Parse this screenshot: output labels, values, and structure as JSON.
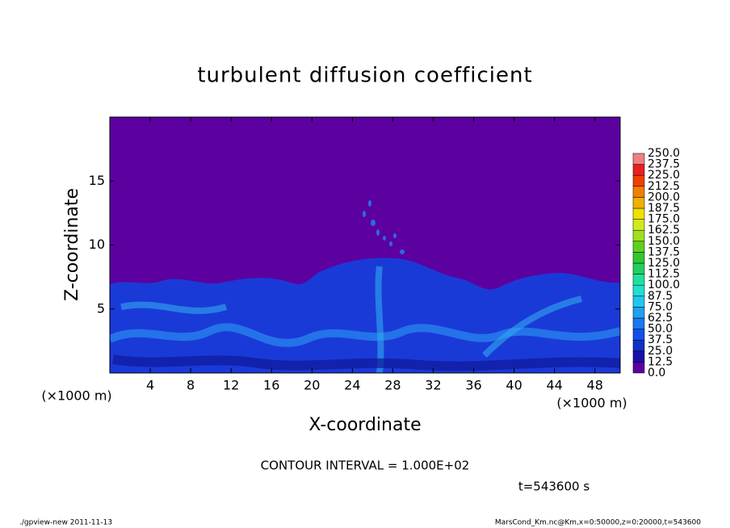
{
  "chart_data": {
    "type": "contour",
    "title": "turbulent diffusion coefficient",
    "x_label": "X-coordinate",
    "y_label": "Z-coordinate",
    "x_unit_left": "(×1000 m)",
    "x_unit_right": "(×1000 m)",
    "contour_note": "CONTOUR INTERVAL = 1.000E+02",
    "time_note": "t=543600 s",
    "footer_left": "./gpview-new  2011-11-13",
    "footer_right": "MarsCond_Km.nc@Km,x=0:50000,z=0:20000,t=543600",
    "xlim": [
      0,
      50.5
    ],
    "ylim": [
      0,
      20
    ],
    "xticks": [
      4,
      8,
      12,
      16,
      20,
      24,
      28,
      32,
      36,
      40,
      44,
      48
    ],
    "yticks": [
      5,
      10,
      15
    ],
    "colorbar": {
      "clim": [
        0,
        250
      ],
      "levels": [
        {
          "value": 0,
          "label": "0.0"
        },
        {
          "value": 12.5,
          "label": "12.5"
        },
        {
          "value": 25,
          "label": "25.0"
        },
        {
          "value": 37.5,
          "label": "37.5"
        },
        {
          "value": 50,
          "label": "50.0"
        },
        {
          "value": 62.5,
          "label": "62.5"
        },
        {
          "value": 75,
          "label": "75.0"
        },
        {
          "value": 87.5,
          "label": "87.5"
        },
        {
          "value": 100,
          "label": "100.0"
        },
        {
          "value": 112.5,
          "label": "112.5"
        },
        {
          "value": 125,
          "label": "125.0"
        },
        {
          "value": 137.5,
          "label": "137.5"
        },
        {
          "value": 150,
          "label": "150.0"
        },
        {
          "value": 162.5,
          "label": "162.5"
        },
        {
          "value": 175,
          "label": "175.0"
        },
        {
          "value": 187.5,
          "label": "187.5"
        },
        {
          "value": 200,
          "label": "200.0"
        },
        {
          "value": 212.5,
          "label": "212.5"
        },
        {
          "value": 225,
          "label": "225.0"
        },
        {
          "value": 237.5,
          "label": "237.5"
        },
        {
          "value": 250,
          "label": "250.0"
        }
      ],
      "colors": [
        "#5c00a0",
        "#1a10a8",
        "#1030c8",
        "#1050e6",
        "#1a78f0",
        "#20a0f0",
        "#20c8f0",
        "#20e0d0",
        "#20e0a0",
        "#20d060",
        "#30c830",
        "#60d020",
        "#a0e020",
        "#d0e820",
        "#f0e000",
        "#f0b000",
        "#f08000",
        "#f04000",
        "#e82020",
        "#f08080"
      ]
    }
  }
}
